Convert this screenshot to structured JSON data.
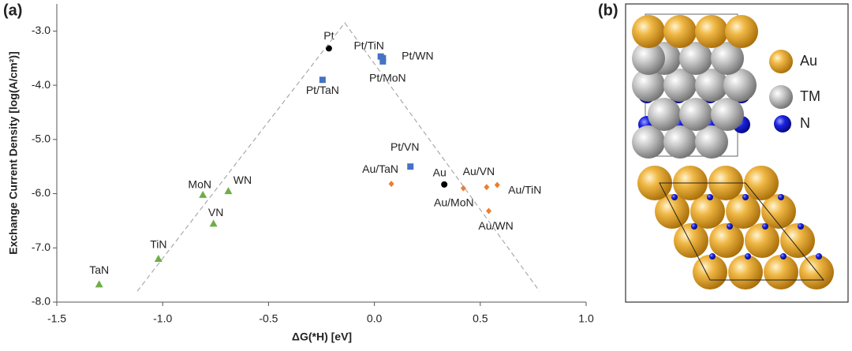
{
  "panel_labels": [
    "(a)",
    "(b)"
  ],
  "structure_legend": [
    "Au",
    "TM",
    "N"
  ],
  "chart_data": {
    "type": "scatter",
    "x_label": "ΔG(*H) [eV]",
    "y_label": "Exchange Current Density [log(A/cm²)]",
    "xlim": [
      -1.5,
      1.0
    ],
    "ylim": [
      -8.0,
      -2.5
    ],
    "xticks": [
      -1.5,
      {
        "value": -1,
        "label": "-1.0"
      },
      -0.5,
      {
        "value": 0,
        "label": "0.0"
      },
      0.5,
      {
        "value": 1,
        "label": "1.0"
      }
    ],
    "yticks": [
      {
        "value": -3,
        "label": "-3.0"
      },
      {
        "value": -4,
        "label": "-4.0"
      },
      {
        "value": -5,
        "label": "-5.0"
      },
      {
        "value": -6,
        "label": "-6.0"
      },
      {
        "value": -7,
        "label": "-7.0"
      },
      {
        "value": -8,
        "label": "-8.0"
      }
    ],
    "series": [
      {
        "marker": "circle",
        "color": "#000000",
        "labels": [
          "Pt",
          "Au"
        ],
        "x": [
          -0.215,
          0.33
        ],
        "values": [
          -3.32,
          -5.83
        ]
      },
      {
        "marker": "square",
        "color": "#4472c4",
        "labels": [
          "Pt/TaN",
          "Pt/TiN",
          "Pt/WN",
          "Pt/MoN",
          "Pt/VN"
        ],
        "x": [
          -0.245,
          0.03,
          0.04,
          0.04,
          0.17
        ],
        "values": [
          -3.9,
          -3.47,
          -3.5,
          -3.56,
          -5.5
        ]
      },
      {
        "marker": "diamond",
        "color": "#ed7d31",
        "labels": [
          "Au/TaN",
          "Au/MoN",
          "Au/VN",
          "Au/TiN",
          "Au/WN"
        ],
        "x": [
          0.08,
          0.42,
          0.53,
          0.58,
          0.54
        ],
        "values": [
          -5.82,
          -5.9,
          -5.88,
          -5.84,
          -6.32
        ]
      },
      {
        "marker": "triangle",
        "color": "#70ad47",
        "labels": [
          "TaN",
          "TiN",
          "MoN",
          "WN",
          "VN"
        ],
        "x": [
          -1.3,
          -1.02,
          -0.81,
          -0.69,
          -0.76
        ],
        "values": [
          -7.67,
          -7.2,
          -6.02,
          -5.95,
          -6.55
        ]
      },
      {
        "marker": "dashed-line",
        "color": "#aaaaaa",
        "x": [
          -1.12,
          -0.14,
          0.78
        ],
        "values": [
          -7.8,
          -2.85,
          -7.8
        ]
      }
    ]
  }
}
